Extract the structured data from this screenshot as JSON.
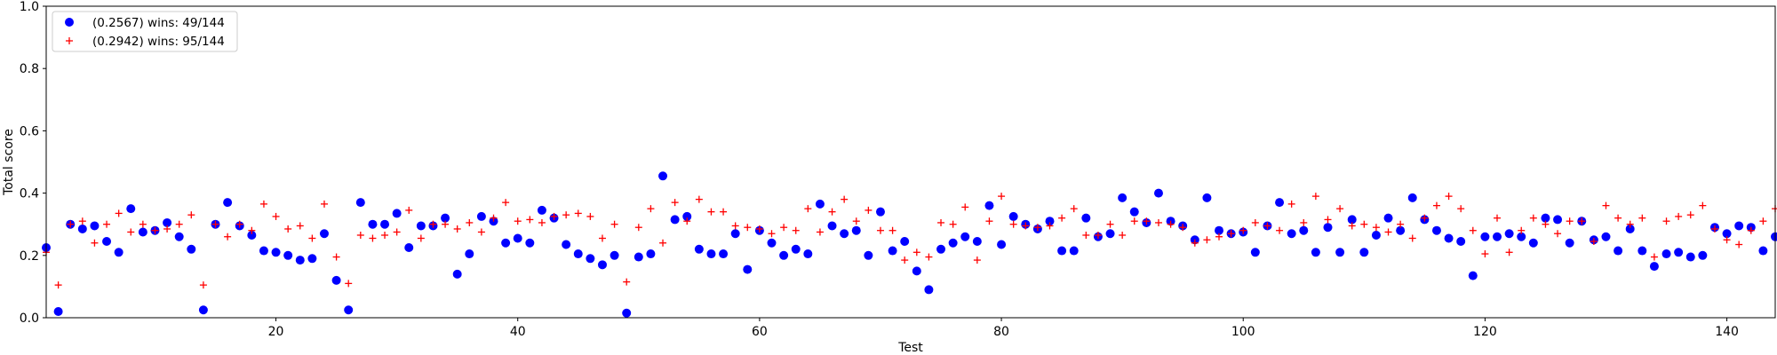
{
  "chart_data": {
    "type": "scatter",
    "title": "",
    "xlabel": "Test",
    "ylabel": "Total score",
    "xlim": [
      1,
      144
    ],
    "ylim": [
      0.0,
      1.0
    ],
    "xticks": [
      20,
      40,
      60,
      80,
      100,
      120,
      140
    ],
    "xtick_labels": [
      "20",
      "40",
      "60",
      "80",
      "100",
      "120",
      "140"
    ],
    "yticks": [
      0.0,
      0.2,
      0.4,
      0.6,
      0.8,
      1.0
    ],
    "ytick_labels": [
      "0.0",
      "0.2",
      "0.4",
      "0.6",
      "0.8",
      "1.0"
    ],
    "grid": false,
    "legend_position": "top-left",
    "x": [
      1,
      2,
      3,
      4,
      5,
      6,
      7,
      8,
      9,
      10,
      11,
      12,
      13,
      14,
      15,
      16,
      17,
      18,
      19,
      20,
      21,
      22,
      23,
      24,
      25,
      26,
      27,
      28,
      29,
      30,
      31,
      32,
      33,
      34,
      35,
      36,
      37,
      38,
      39,
      40,
      41,
      42,
      43,
      44,
      45,
      46,
      47,
      48,
      49,
      50,
      51,
      52,
      53,
      54,
      55,
      56,
      57,
      58,
      59,
      60,
      61,
      62,
      63,
      64,
      65,
      66,
      67,
      68,
      69,
      70,
      71,
      72,
      73,
      74,
      75,
      76,
      77,
      78,
      79,
      80,
      81,
      82,
      83,
      84,
      85,
      86,
      87,
      88,
      89,
      90,
      91,
      92,
      93,
      94,
      95,
      96,
      97,
      98,
      99,
      100,
      101,
      102,
      103,
      104,
      105,
      106,
      107,
      108,
      109,
      110,
      111,
      112,
      113,
      114,
      115,
      116,
      117,
      118,
      119,
      120,
      121,
      122,
      123,
      124,
      125,
      126,
      127,
      128,
      129,
      130,
      131,
      132,
      133,
      134,
      135,
      136,
      137,
      138,
      139,
      140,
      141,
      142,
      143,
      144
    ],
    "series": [
      {
        "name": "(0.2567) wins: 49/144",
        "marker": "circle",
        "color": "#0000ff",
        "values": [
          0.225,
          0.02,
          0.3,
          0.285,
          0.295,
          0.245,
          0.21,
          0.35,
          0.275,
          0.28,
          0.305,
          0.26,
          0.22,
          0.025,
          0.3,
          0.37,
          0.295,
          0.265,
          0.215,
          0.21,
          0.2,
          0.185,
          0.19,
          0.27,
          0.12,
          0.025,
          0.37,
          0.3,
          0.3,
          0.335,
          0.225,
          0.295,
          0.295,
          0.32,
          0.14,
          0.205,
          0.325,
          0.31,
          0.24,
          0.255,
          0.24,
          0.345,
          0.32,
          0.235,
          0.205,
          0.19,
          0.17,
          0.2,
          0.015,
          0.195,
          0.205,
          0.455,
          0.315,
          0.325,
          0.22,
          0.205,
          0.205,
          0.27,
          0.155,
          0.28,
          0.24,
          0.2,
          0.22,
          0.205,
          0.365,
          0.295,
          0.27,
          0.28,
          0.2,
          0.34,
          0.215,
          0.245,
          0.15,
          0.09,
          0.22,
          0.24,
          0.26,
          0.245,
          0.36,
          0.235,
          0.325,
          0.3,
          0.285,
          0.31,
          0.215,
          0.215,
          0.32,
          0.26,
          0.27,
          0.385,
          0.34,
          0.305,
          0.4,
          0.31,
          0.295,
          0.25,
          0.385,
          0.28,
          0.27,
          0.275,
          0.21,
          0.295,
          0.37,
          0.27,
          0.28,
          0.21,
          0.29,
          0.21,
          0.315,
          0.21,
          0.265,
          0.32,
          0.28,
          0.385,
          0.315,
          0.28,
          0.255,
          0.245,
          0.135,
          0.26,
          0.26,
          0.27,
          0.26,
          0.24,
          0.32,
          0.315,
          0.24,
          0.31,
          0.25,
          0.26,
          0.215,
          0.285,
          0.215,
          0.165,
          0.205,
          0.21,
          0.195,
          0.2,
          0.29,
          0.27,
          0.295,
          0.29,
          0.215,
          0.26
        ]
      },
      {
        "name": "(0.2942) wins: 95/144",
        "marker": "plus",
        "color": "#ff0000",
        "values": [
          0.21,
          0.105,
          0.3,
          0.31,
          0.24,
          0.3,
          0.335,
          0.275,
          0.3,
          0.28,
          0.285,
          0.3,
          0.33,
          0.105,
          0.3,
          0.26,
          0.3,
          0.28,
          0.365,
          0.325,
          0.285,
          0.295,
          0.255,
          0.365,
          0.195,
          0.11,
          0.265,
          0.255,
          0.265,
          0.275,
          0.345,
          0.255,
          0.3,
          0.3,
          0.285,
          0.305,
          0.275,
          0.32,
          0.37,
          0.31,
          0.315,
          0.305,
          0.325,
          0.33,
          0.335,
          0.325,
          0.255,
          0.3,
          0.115,
          0.29,
          0.35,
          0.24,
          0.37,
          0.31,
          0.38,
          0.34,
          0.34,
          0.295,
          0.29,
          0.285,
          0.27,
          0.29,
          0.28,
          0.35,
          0.275,
          0.34,
          0.38,
          0.31,
          0.345,
          0.28,
          0.28,
          0.185,
          0.21,
          0.195,
          0.305,
          0.3,
          0.355,
          0.185,
          0.31,
          0.39,
          0.3,
          0.295,
          0.29,
          0.295,
          0.32,
          0.35,
          0.265,
          0.265,
          0.3,
          0.265,
          0.31,
          0.31,
          0.305,
          0.3,
          0.29,
          0.24,
          0.25,
          0.26,
          0.27,
          0.28,
          0.305,
          0.295,
          0.28,
          0.365,
          0.305,
          0.39,
          0.315,
          0.35,
          0.295,
          0.3,
          0.29,
          0.275,
          0.3,
          0.255,
          0.32,
          0.36,
          0.39,
          0.35,
          0.28,
          0.205,
          0.32,
          0.21,
          0.28,
          0.32,
          0.3,
          0.27,
          0.31,
          0.31,
          0.245,
          0.36,
          0.32,
          0.3,
          0.32,
          0.195,
          0.31,
          0.325,
          0.33,
          0.36,
          0.285,
          0.25,
          0.235,
          0.28,
          0.31,
          0.35
        ]
      }
    ]
  }
}
